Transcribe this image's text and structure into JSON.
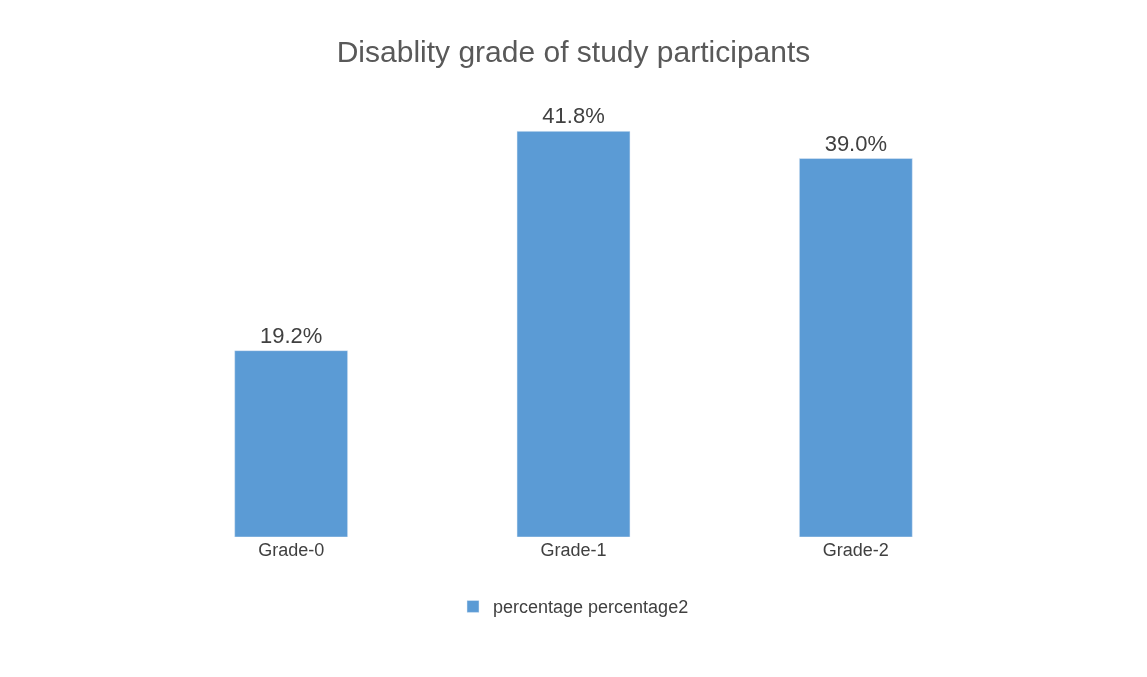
{
  "chart_data": {
    "type": "bar",
    "title": "Disablity grade of study participants",
    "categories": [
      "Grade-0",
      "Grade-1",
      "Grade-2"
    ],
    "series": [
      {
        "name": "percentage percentage2",
        "color": "#5b9bd5",
        "values": [
          19.2,
          41.8,
          39.0
        ],
        "value_labels": [
          "19.2%",
          "41.8%",
          "39.0%"
        ]
      }
    ],
    "legend": "bottom",
    "tick_labels": "x"
  }
}
